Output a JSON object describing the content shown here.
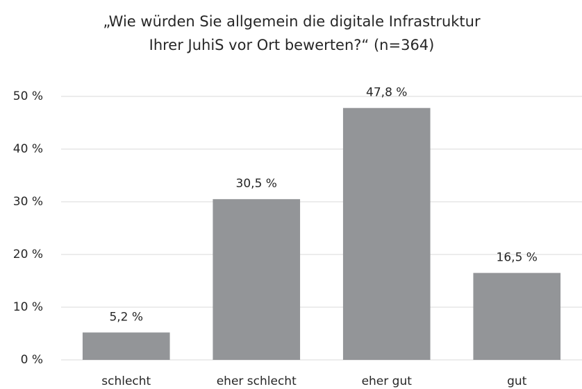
{
  "chart_data": {
    "type": "bar",
    "title": [
      "„Wie würden Sie allgemein die digitale Infrastruktur",
      "Ihrer JuhiS vor Ort bewerten?“ (n=364)"
    ],
    "categories": [
      "schlecht",
      "eher schlecht",
      "eher gut",
      "gut"
    ],
    "values": [
      5.2,
      30.5,
      47.8,
      16.5
    ],
    "value_labels": [
      "5,2 %",
      "30,5 %",
      "47,8 %",
      "16,5 %"
    ],
    "color": "#939598",
    "ylim": [
      0,
      50
    ],
    "yticks": [
      {
        "value": 0,
        "label": "0 %"
      },
      {
        "value": 10,
        "label": "10 %"
      },
      {
        "value": 20,
        "label": "20 %"
      },
      {
        "value": 30,
        "label": "30 %"
      },
      {
        "value": 40,
        "label": "40 %"
      },
      {
        "value": 50,
        "label": "50 %"
      }
    ],
    "grid": true
  }
}
